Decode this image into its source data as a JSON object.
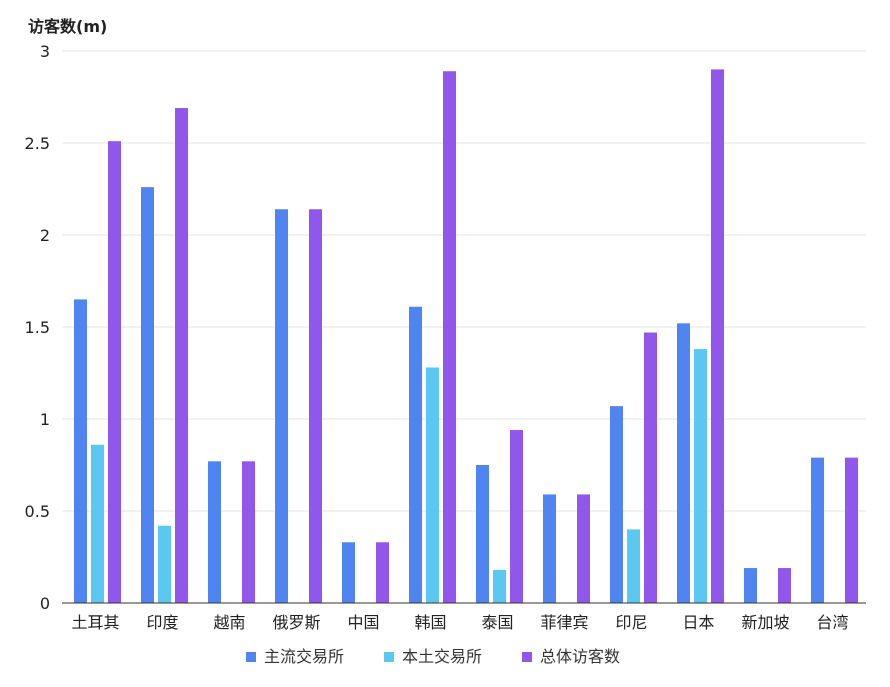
{
  "chart_data": {
    "type": "bar",
    "ylabel": "访客数(m)",
    "ylim": [
      0,
      3
    ],
    "yticks": [
      "0",
      "0.5",
      "1",
      "1.5",
      "2",
      "2.5",
      "3"
    ],
    "grid": true,
    "legend_position": "bottom",
    "categories": [
      "土耳其",
      "印度",
      "越南",
      "俄罗斯",
      "中国",
      "韩国",
      "泰国",
      "菲律宾",
      "印尼",
      "日本",
      "新加坡",
      "台湾"
    ],
    "series": [
      {
        "name": "主流交易所",
        "color": "#5085f1",
        "values": [
          1.65,
          2.26,
          0.77,
          2.14,
          0.33,
          1.61,
          0.75,
          0.59,
          1.07,
          1.52,
          0.19,
          0.79
        ]
      },
      {
        "name": "本土交易所",
        "color": "#5bc8f2",
        "values": [
          0.86,
          0.42,
          0,
          0,
          0,
          1.28,
          0.18,
          0,
          0.4,
          1.38,
          0,
          0
        ]
      },
      {
        "name": "总体访客数",
        "color": "#9157eb",
        "values": [
          2.51,
          2.69,
          0.77,
          2.14,
          0.33,
          2.89,
          0.94,
          0.59,
          1.47,
          2.9,
          0.19,
          0.79
        ]
      }
    ]
  }
}
